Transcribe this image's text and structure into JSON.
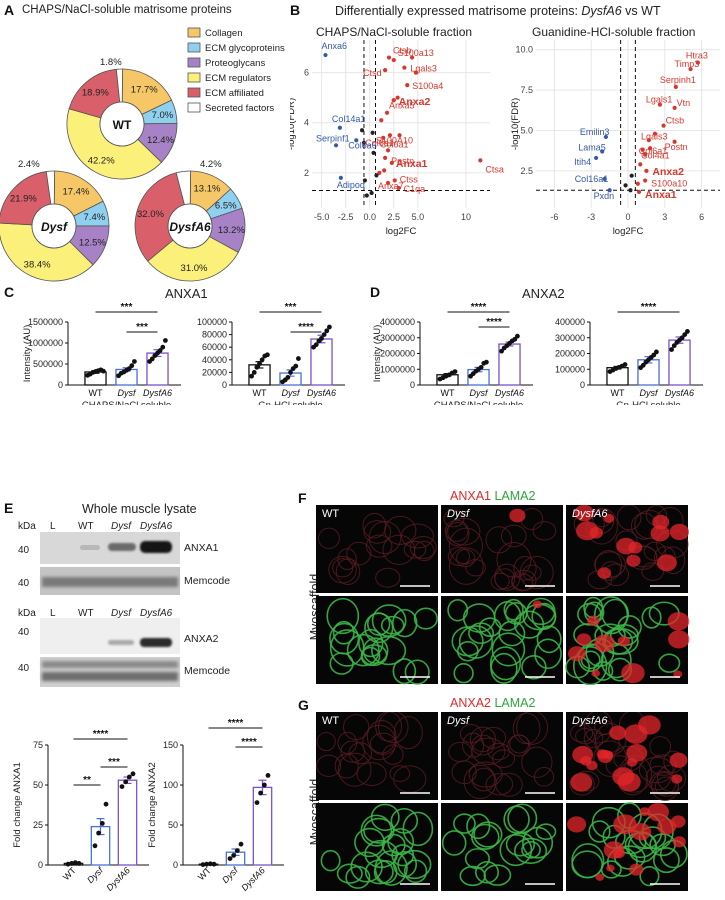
{
  "panels": {
    "A": {
      "letter": "A",
      "title": "CHAPS/NaCl-soluble matrisome proteins",
      "legend": [
        {
          "label": "Collagen",
          "color": "#f6c766"
        },
        {
          "label": "ECM glycoproteins",
          "color": "#8fd0ef"
        },
        {
          "label": "Proteoglycans",
          "color": "#a882c6"
        },
        {
          "label": "ECM regulators",
          "color": "#fbf07a"
        },
        {
          "label": "ECM affiliated",
          "color": "#d9606a"
        },
        {
          "label": "Secreted factors",
          "color": "#ffffff"
        }
      ],
      "donuts": [
        {
          "center_label": "WT",
          "italic": false,
          "outside_label": "1.8%",
          "slices": [
            {
              "cat": "Collagen",
              "value": 17.7,
              "label": "17.7%"
            },
            {
              "cat": "ECM glycoproteins",
              "value": 7.0,
              "label": "7.0%"
            },
            {
              "cat": "Proteoglycans",
              "value": 12.4,
              "label": "12.4%"
            },
            {
              "cat": "ECM regulators",
              "value": 42.2,
              "label": "42.2%"
            },
            {
              "cat": "ECM affiliated",
              "value": 18.9,
              "label": "18.9%"
            },
            {
              "cat": "Secreted factors",
              "value": 1.8,
              "label": ""
            }
          ]
        },
        {
          "center_label": "Dysf",
          "italic": true,
          "outside_label": "2.4%",
          "slices": [
            {
              "cat": "Collagen",
              "value": 17.4,
              "label": "17.4%"
            },
            {
              "cat": "ECM glycoproteins",
              "value": 7.4,
              "label": "7.4%"
            },
            {
              "cat": "Proteoglycans",
              "value": 12.5,
              "label": "12.5%"
            },
            {
              "cat": "ECM regulators",
              "value": 38.4,
              "label": "38.4%"
            },
            {
              "cat": "ECM affiliated",
              "value": 21.9,
              "label": "21.9%"
            },
            {
              "cat": "Secreted factors",
              "value": 2.4,
              "label": ""
            }
          ]
        },
        {
          "center_label": "DysfA6",
          "italic": true,
          "outside_label": "4.2%",
          "slices": [
            {
              "cat": "Collagen",
              "value": 13.1,
              "label": "13.1%"
            },
            {
              "cat": "ECM glycoproteins",
              "value": 6.5,
              "label": "6.5%"
            },
            {
              "cat": "Proteoglycans",
              "value": 13.2,
              "label": "13.2%"
            },
            {
              "cat": "ECM regulators",
              "value": 31.0,
              "label": "31.0%"
            },
            {
              "cat": "ECM affiliated",
              "value": 32.0,
              "label": "32.0%"
            },
            {
              "cat": "Secreted factors",
              "value": 4.2,
              "label": ""
            }
          ]
        }
      ]
    },
    "B": {
      "letter": "B",
      "title_prefix": "Differentially expressed matrisome proteins: ",
      "title_italic": "DysfA6",
      "title_suffix": " vs WT",
      "plots": [
        {
          "subtitle": "CHAPS/NaCl-soluble fraction",
          "xlabel": "log2FC",
          "ylabel": "-log10(FDR)",
          "xticks": [
            "-5.0",
            "-2.5",
            "0.0",
            "2.5",
            "5.0",
            "10"
          ],
          "yticks": [
            "2",
            "4",
            "6"
          ],
          "up_labels": [
            "Ctsb",
            "S100a13",
            "Anxa5",
            "Lgals3",
            "Ctsd",
            "S100a4",
            "Anxa2",
            "S100A10",
            "Col6a1",
            "Anxa1",
            "Postn",
            "Anxa7",
            "Col6a1",
            "C1qa",
            "Ctss",
            "Ctsa"
          ],
          "down_labels": [
            "Anxa6",
            "Col14a1",
            "Serpinf1",
            "Col6a6",
            "Adipoq"
          ]
        },
        {
          "subtitle": "Guanidine-HCl-soluble fraction",
          "xlabel": "log2FC",
          "ylabel": "-log10(FDR)",
          "xticks": [
            "-6",
            "-3",
            "0",
            "3",
            "6"
          ],
          "yticks": [
            "2.5",
            "5.0",
            "7.5",
            "10.0"
          ],
          "up_labels": [
            "Htra3",
            "Timp3",
            "Serpinh1",
            "Lgals1",
            "Vtn",
            "Ctsb",
            "Postn",
            "Lgals3",
            "Col6a1",
            "Col4a1",
            "Anxa2",
            "S100a10",
            "Anxa1"
          ],
          "down_labels": [
            "Emilin3",
            "Lama5",
            "Itih4",
            "Col16a1",
            "Pxdn"
          ]
        }
      ]
    },
    "C": {
      "letter": "C",
      "title": "ANXA1",
      "charts": [
        {
          "ylabel": "Intensity (AU)",
          "xlabel": "CHAPS/NaCl soluble",
          "yticks": [
            "0",
            "500000",
            "1000000",
            "1500000"
          ],
          "sig": [
            "***",
            "***"
          ]
        },
        {
          "ylabel": "",
          "xlabel": "Gn-HCl soluble",
          "yticks": [
            "0",
            "20000",
            "40000",
            "60000",
            "80000",
            "100000"
          ],
          "sig": [
            "***",
            "****"
          ]
        }
      ]
    },
    "D": {
      "letter": "D",
      "title": "ANXA2",
      "charts": [
        {
          "ylabel": "Intensity (AU)",
          "xlabel": "CHAPS/NaCl soluble",
          "yticks": [
            "0",
            "1000000",
            "2000000",
            "3000000",
            "4000000"
          ],
          "sig": [
            "****",
            "****"
          ]
        },
        {
          "ylabel": "",
          "xlabel": "Gn-HCl soluble",
          "yticks": [
            "0",
            "100000",
            "200000",
            "300000",
            "400000"
          ],
          "sig": [
            "****"
          ]
        }
      ]
    },
    "E": {
      "letter": "E",
      "title": "Whole muscle lysate",
      "blot_kda": "kDa",
      "blot_lanes": [
        "L",
        "WT",
        "Dysf",
        "DysfA6"
      ],
      "blot1_labels": [
        "ANXA1",
        "Memcode"
      ],
      "blot2_labels": [
        "ANXA2",
        "Memcode"
      ],
      "blot_mw": "40",
      "charts": [
        {
          "ylabel": "Fold change ANXA1",
          "yticks": [
            "0",
            "25",
            "50",
            "75"
          ],
          "sig": [
            "****",
            "**",
            "***"
          ]
        },
        {
          "ylabel": "Fold change ANXA2",
          "yticks": [
            "0",
            "50",
            "100",
            "150"
          ],
          "sig": [
            "****",
            "****"
          ]
        }
      ]
    },
    "F": {
      "letter": "F",
      "stain1": "ANXA1",
      "stain2": "LAMA2",
      "side_label": "Myoscaffold",
      "col_labels": [
        "WT",
        "Dysf",
        "DysfA6"
      ]
    },
    "G": {
      "letter": "G",
      "stain1": "ANXA2",
      "stain2": "LAMA2",
      "side_label": "Myoscaffold",
      "col_labels": [
        "WT",
        "Dysf",
        "DysfA6"
      ]
    }
  },
  "groups": [
    "WT",
    "Dysf",
    "DysfA6"
  ],
  "colors": {
    "wt": "#111111",
    "dysf": "#4a6fd6",
    "dysfa6": "#7b52c9",
    "up": "#d8372d",
    "down": "#3558a8",
    "ns": "#222222"
  },
  "chart_data": [
    {
      "type": "pie",
      "title": "WT",
      "categories": [
        "Collagen",
        "ECM glycoproteins",
        "Proteoglycans",
        "ECM regulators",
        "ECM affiliated",
        "Secreted factors"
      ],
      "values": [
        17.7,
        7.0,
        12.4,
        42.2,
        18.9,
        1.8
      ]
    },
    {
      "type": "pie",
      "title": "Dysf",
      "categories": [
        "Collagen",
        "ECM glycoproteins",
        "Proteoglycans",
        "ECM regulators",
        "ECM affiliated",
        "Secreted factors"
      ],
      "values": [
        17.4,
        7.4,
        12.5,
        38.4,
        21.9,
        2.4
      ]
    },
    {
      "type": "pie",
      "title": "DysfA6",
      "categories": [
        "Collagen",
        "ECM glycoproteins",
        "Proteoglycans",
        "ECM regulators",
        "ECM affiliated",
        "Secreted factors"
      ],
      "values": [
        13.1,
        6.5,
        13.2,
        31.0,
        32.0,
        4.2
      ]
    },
    {
      "type": "scatter",
      "title": "CHAPS/NaCl-soluble fraction",
      "xlabel": "log2FC",
      "ylabel": "-log10(FDR)",
      "xlim": [
        -6,
        12.5
      ],
      "ylim": [
        0.6,
        7.3
      ],
      "series": [
        {
          "name": "up",
          "points": [
            [
              2.0,
              6.6
            ],
            [
              2.5,
              6.5
            ],
            [
              3.6,
              6.2
            ],
            [
              4.4,
              6.6
            ],
            [
              1.6,
              6.1
            ],
            [
              3.9,
              5.5
            ],
            [
              4.8,
              6.0
            ],
            [
              2.5,
              4.9
            ],
            [
              2.9,
              5.0
            ],
            [
              1.8,
              4.4
            ],
            [
              2.5,
              4.9
            ],
            [
              2.1,
              3.5
            ],
            [
              1.9,
              2.9
            ],
            [
              2.3,
              2.4
            ],
            [
              1.6,
              2.6
            ],
            [
              1.9,
              1.6
            ],
            [
              3.0,
              1.4
            ],
            [
              11.5,
              2.5
            ],
            [
              1.2,
              4.1
            ],
            [
              1.4,
              3.4
            ],
            [
              1.0,
              2.0
            ],
            [
              1.5,
              2.1
            ],
            [
              2.6,
              1.7
            ],
            [
              3.1,
              3.5
            ]
          ]
        },
        {
          "name": "down",
          "points": [
            [
              -4.6,
              6.7
            ],
            [
              -3.1,
              3.8
            ],
            [
              -3.5,
              3.1
            ],
            [
              -1.4,
              3.3
            ],
            [
              -3.0,
              1.8
            ]
          ]
        },
        {
          "name": "ns",
          "points": [
            [
              -0.8,
              3.7
            ],
            [
              -0.6,
              3.2
            ],
            [
              0.3,
              3.6
            ],
            [
              0.4,
              2.8
            ],
            [
              -0.5,
              1.7
            ],
            [
              0.7,
              1.9
            ],
            [
              0.2,
              1.2
            ],
            [
              -0.3,
              1.1
            ]
          ]
        }
      ]
    },
    {
      "type": "scatter",
      "title": "Guanidine-HCl-soluble fraction",
      "xlabel": "log2FC",
      "ylabel": "-log10(FDR)",
      "xlim": [
        -7.5,
        7.5
      ],
      "ylim": [
        0.2,
        10.6
      ],
      "series": [
        {
          "name": "up",
          "points": [
            [
              5.7,
              9.2
            ],
            [
              5.1,
              8.8
            ],
            [
              3.9,
              7.7
            ],
            [
              2.6,
              6.6
            ],
            [
              3.8,
              6.4
            ],
            [
              2.9,
              5.3
            ],
            [
              3.8,
              4.3
            ],
            [
              1.7,
              4.4
            ],
            [
              1.8,
              3.9
            ],
            [
              1.4,
              3.5
            ],
            [
              1.5,
              2.5
            ],
            [
              1.4,
              1.9
            ],
            [
              0.9,
              1.2
            ],
            [
              0.8,
              1.7
            ],
            [
              1.0,
              2.9
            ],
            [
              2.2,
              4.8
            ],
            [
              1.2,
              3.8
            ]
          ]
        },
        {
          "name": "down",
          "points": [
            [
              -1.8,
              4.6
            ],
            [
              -2.1,
              3.7
            ],
            [
              -2.6,
              3.3
            ],
            [
              -1.9,
              2.0
            ],
            [
              -1.5,
              1.3
            ]
          ]
        },
        {
          "name": "ns",
          "points": [
            [
              -0.2,
              1.6
            ],
            [
              0.3,
              2.2
            ],
            [
              0.2,
              1.3
            ]
          ]
        }
      ]
    },
    {
      "type": "bar",
      "title": "ANXA1 CHAPS/NaCl soluble",
      "categories": [
        "WT",
        "Dysf",
        "DysfA6"
      ],
      "values": [
        310000,
        370000,
        760000
      ],
      "ylim": [
        0,
        1500000
      ]
    },
    {
      "type": "bar",
      "title": "ANXA1 Gn-HCl soluble",
      "categories": [
        "WT",
        "Dysf",
        "DysfA6"
      ],
      "values": [
        32000,
        19000,
        73000
      ],
      "ylim": [
        0,
        100000
      ]
    },
    {
      "type": "bar",
      "title": "ANXA2 CHAPS/NaCl soluble",
      "categories": [
        "WT",
        "Dysf",
        "DysfA6"
      ],
      "values": [
        650000,
        980000,
        2600000
      ],
      "ylim": [
        0,
        4000000
      ]
    },
    {
      "type": "bar",
      "title": "ANXA2 Gn-HCl soluble",
      "categories": [
        "WT",
        "Dysf",
        "DysfA6"
      ],
      "values": [
        110000,
        160000,
        285000
      ],
      "ylim": [
        0,
        400000
      ]
    },
    {
      "type": "bar",
      "title": "Fold change ANXA1",
      "categories": [
        "WT",
        "Dysf",
        "DysfA6"
      ],
      "values": [
        1,
        24,
        53
      ],
      "ylim": [
        0,
        75
      ]
    },
    {
      "type": "bar",
      "title": "Fold change ANXA2",
      "categories": [
        "WT",
        "Dysf",
        "DysfA6"
      ],
      "values": [
        1,
        16,
        97
      ],
      "ylim": [
        0,
        150
      ]
    }
  ],
  "bar_points": {
    "c1": [
      [
        230000,
        260000,
        300000,
        320000,
        340000,
        360000,
        330000
      ],
      [
        220000,
        280000,
        310000,
        350000,
        390000,
        460000,
        560000
      ],
      [
        560000,
        620000,
        700000,
        760000,
        820000,
        900000,
        1060000
      ]
    ],
    "c2": [
      [
        14000,
        20000,
        28000,
        34000,
        40000,
        46000,
        48000
      ],
      [
        5000,
        8000,
        12000,
        20000,
        26000,
        30000,
        42000
      ],
      [
        60000,
        64000,
        70000,
        74000,
        80000,
        86000,
        92000
      ]
    ],
    "d1": [
      [
        380000,
        460000,
        560000,
        640000,
        760000,
        850000
      ],
      [
        560000,
        720000,
        880000,
        1000000,
        1120000,
        1380000,
        1450000
      ],
      [
        2150000,
        2350000,
        2500000,
        2650000,
        2800000,
        2900000,
        3100000
      ]
    ],
    "d2": [
      [
        85000,
        95000,
        105000,
        112000,
        120000,
        130000
      ],
      [
        110000,
        125000,
        145000,
        160000,
        175000,
        190000,
        210000
      ],
      [
        225000,
        250000,
        270000,
        285000,
        300000,
        320000,
        340000
      ]
    ],
    "e1": [
      [
        0.5,
        1,
        1.5,
        1
      ],
      [
        12,
        20,
        26,
        38
      ],
      [
        49,
        52,
        55,
        57
      ]
    ],
    "e2": [
      [
        0.5,
        1,
        1.5,
        1
      ],
      [
        8,
        12,
        18,
        26
      ],
      [
        78,
        90,
        100,
        112
      ]
    ]
  },
  "bar_err": {
    "c1": [
      30000,
      40000,
      80000
    ],
    "c2": [
      5000,
      5000,
      6000
    ],
    "d1": [
      70000,
      140000,
      120000
    ],
    "d2": [
      8000,
      20000,
      20000
    ],
    "e1": [
      0.5,
      5,
      2
    ],
    "e2": [
      0.5,
      4,
      9
    ]
  }
}
